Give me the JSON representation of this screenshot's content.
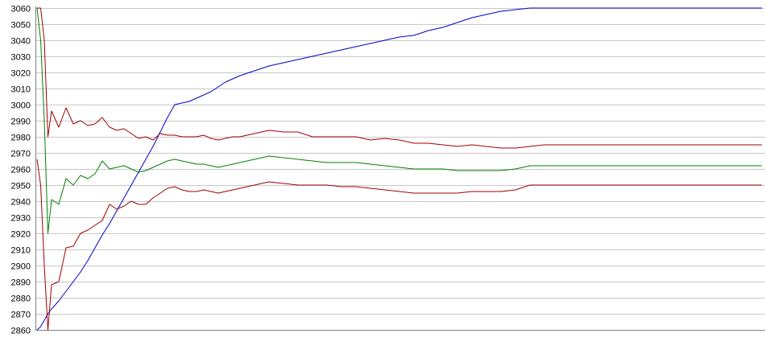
{
  "chart_data": {
    "type": "line",
    "title": "",
    "xlabel": "",
    "ylabel": "",
    "legend": "none",
    "grid": true,
    "ylim": [
      2860,
      3060
    ],
    "yticks": [
      2860,
      2870,
      2880,
      2890,
      2900,
      2910,
      2920,
      2930,
      2940,
      2950,
      2960,
      2970,
      2980,
      2990,
      3000,
      3010,
      3020,
      3030,
      3040,
      3050,
      3060
    ],
    "xlim": [
      0,
      100
    ],
    "x": [
      0,
      0.5,
      1,
      1.5,
      2,
      3,
      4,
      5,
      6,
      7,
      8,
      9,
      10,
      11,
      12,
      13,
      14,
      15,
      16,
      17,
      18,
      19,
      20,
      21,
      22,
      23,
      24,
      25,
      26,
      27,
      28,
      30,
      32,
      34,
      36,
      38,
      40,
      42,
      44,
      46,
      48,
      50,
      52,
      54,
      56,
      58,
      60,
      62,
      64,
      66,
      68,
      70,
      72,
      74,
      76,
      78,
      80,
      82,
      84,
      86,
      88,
      90,
      92,
      94,
      96,
      98,
      100
    ],
    "colors": {
      "blue": "#0000cc",
      "upper_red": "#a00000",
      "green": "#008000",
      "lower_red": "#a00000"
    },
    "series": [
      {
        "color": "#0000cc",
        "values": [
          2860,
          2862,
          2866,
          2870,
          2873,
          2878,
          2884,
          2890,
          2896,
          2903,
          2911,
          2919,
          2926,
          2934,
          2942,
          2950,
          2958,
          2966,
          2974,
          2983,
          2992,
          3000,
          3001,
          3002,
          3004,
          3006,
          3008,
          3011,
          3014,
          3016,
          3018,
          3021,
          3024,
          3026,
          3028,
          3030,
          3032,
          3034,
          3036,
          3038,
          3040,
          3042,
          3043,
          3046,
          3048,
          3051,
          3054,
          3056,
          3058,
          3059,
          3060,
          3060,
          3060,
          3060,
          3060,
          3060,
          3060,
          3060,
          3060,
          3060,
          3060,
          3060,
          3060,
          3060,
          3060,
          3060,
          3060
        ]
      },
      {
        "color": "#a00000",
        "values": [
          3060,
          3060,
          3040,
          2980,
          2996,
          2986,
          2998,
          2988,
          2990,
          2987,
          2988,
          2992,
          2986,
          2984,
          2985,
          2982,
          2979,
          2980,
          2978,
          2982,
          2981,
          2981,
          2980,
          2980,
          2980,
          2981,
          2979,
          2978,
          2979,
          2980,
          2980,
          2982,
          2984,
          2983,
          2983,
          2980,
          2980,
          2980,
          2980,
          2978,
          2979,
          2978,
          2976,
          2976,
          2975,
          2974,
          2975,
          2974,
          2973,
          2973,
          2974,
          2975,
          2975,
          2975,
          2975,
          2975,
          2975,
          2975,
          2975,
          2975,
          2975,
          2975,
          2975,
          2975,
          2975,
          2975,
          2975
        ]
      },
      {
        "color": "#008000",
        "values": [
          3060,
          3040,
          2990,
          2920,
          2941,
          2938,
          2954,
          2950,
          2956,
          2954,
          2957,
          2965,
          2960,
          2961,
          2962,
          2960,
          2958,
          2959,
          2961,
          2963,
          2965,
          2966,
          2965,
          2964,
          2963,
          2963,
          2962,
          2961,
          2962,
          2963,
          2964,
          2966,
          2968,
          2967,
          2966,
          2965,
          2964,
          2964,
          2964,
          2963,
          2962,
          2961,
          2960,
          2960,
          2960,
          2959,
          2959,
          2959,
          2959,
          2960,
          2962,
          2962,
          2962,
          2962,
          2962,
          2962,
          2962,
          2962,
          2962,
          2962,
          2962,
          2962,
          2962,
          2962,
          2962,
          2962,
          2962
        ]
      },
      {
        "color": "#a00000",
        "values": [
          2966,
          2950,
          2900,
          2860,
          2888,
          2890,
          2911,
          2912,
          2920,
          2922,
          2925,
          2928,
          2938,
          2935,
          2937,
          2940,
          2938,
          2938,
          2942,
          2945,
          2948,
          2949,
          2947,
          2946,
          2946,
          2947,
          2946,
          2945,
          2946,
          2947,
          2948,
          2950,
          2952,
          2951,
          2950,
          2950,
          2950,
          2949,
          2949,
          2948,
          2947,
          2946,
          2945,
          2945,
          2945,
          2945,
          2946,
          2946,
          2946,
          2947,
          2950,
          2950,
          2950,
          2950,
          2950,
          2950,
          2950,
          2950,
          2950,
          2950,
          2950,
          2950,
          2950,
          2950,
          2950,
          2950,
          2950
        ]
      }
    ]
  }
}
